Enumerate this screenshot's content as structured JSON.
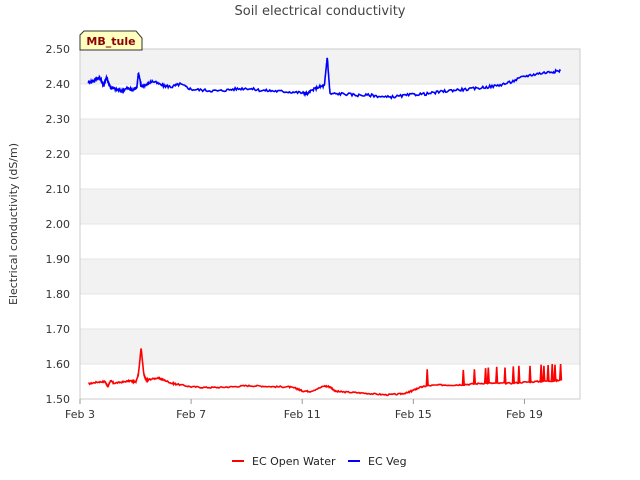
{
  "chart_data": {
    "type": "line",
    "title": "Soil electrical conductivity",
    "badge": "MB_tule",
    "xlabel": "",
    "ylabel": "Electrical conductivity (dS/m)",
    "xlim": [
      3.0,
      21.0
    ],
    "ylim": [
      1.5,
      2.5
    ],
    "yticks": [
      1.5,
      1.6,
      1.7,
      1.8,
      1.9,
      2.0,
      2.1,
      2.2,
      2.3,
      2.4,
      2.5
    ],
    "ytick_labels": [
      "1.50",
      "1.60",
      "1.70",
      "1.80",
      "1.90",
      "2.00",
      "2.10",
      "2.20",
      "2.30",
      "2.40",
      "2.50"
    ],
    "xticks": [
      3,
      7,
      11,
      15,
      19
    ],
    "xtick_labels": [
      "Feb 3",
      "Feb 7",
      "Feb 11",
      "Feb 15",
      "Feb 19"
    ],
    "grid": true,
    "legend_position": "bottom-center",
    "series": [
      {
        "name": "EC Open Water",
        "color": "#ff0000",
        "x": [
          3.3,
          3.6,
          3.9,
          4.0,
          4.1,
          4.2,
          4.5,
          4.8,
          5.0,
          5.1,
          5.2,
          5.3,
          5.35,
          5.4,
          5.5,
          5.8,
          6.0,
          6.3,
          6.5,
          7.0,
          7.5,
          8.0,
          8.5,
          9.0,
          9.5,
          10.0,
          10.5,
          10.8,
          11.0,
          11.3,
          11.8,
          12.0,
          12.2,
          12.5,
          13.0,
          13.5,
          14.0,
          14.5,
          14.8,
          15.0,
          15.2,
          15.5,
          16.0,
          16.5,
          17.0,
          17.5,
          18.0,
          18.5,
          19.0,
          19.5,
          20.0,
          20.3
        ],
        "values": [
          1.543,
          1.548,
          1.55,
          1.535,
          1.553,
          1.545,
          1.548,
          1.552,
          1.548,
          1.57,
          1.645,
          1.57,
          1.558,
          1.553,
          1.556,
          1.56,
          1.555,
          1.545,
          1.542,
          1.535,
          1.533,
          1.533,
          1.535,
          1.538,
          1.537,
          1.535,
          1.535,
          1.53,
          1.523,
          1.522,
          1.537,
          1.535,
          1.522,
          1.52,
          1.518,
          1.515,
          1.512,
          1.514,
          1.518,
          1.525,
          1.532,
          1.538,
          1.54,
          1.54,
          1.542,
          1.545,
          1.545,
          1.545,
          1.548,
          1.55,
          1.552,
          1.553
        ]
      },
      {
        "name": "EC Veg",
        "color": "#0000ff",
        "x": [
          3.3,
          3.5,
          3.7,
          3.85,
          3.95,
          4.1,
          4.3,
          4.5,
          4.7,
          4.9,
          5.05,
          5.1,
          5.2,
          5.4,
          5.6,
          6.0,
          6.3,
          6.6,
          7.0,
          7.5,
          8.0,
          8.5,
          9.0,
          9.5,
          10.0,
          10.5,
          11.0,
          11.2,
          11.3,
          11.6,
          11.8,
          11.9,
          12.0,
          12.5,
          13.0,
          13.5,
          14.0,
          14.5,
          15.0,
          15.5,
          16.0,
          16.5,
          17.0,
          17.5,
          18.0,
          18.5,
          19.0,
          19.5,
          20.0,
          20.3
        ],
        "values": [
          2.405,
          2.41,
          2.42,
          2.395,
          2.42,
          2.39,
          2.385,
          2.38,
          2.388,
          2.382,
          2.392,
          2.432,
          2.395,
          2.398,
          2.408,
          2.395,
          2.392,
          2.4,
          2.385,
          2.382,
          2.38,
          2.385,
          2.388,
          2.382,
          2.38,
          2.378,
          2.375,
          2.372,
          2.38,
          2.392,
          2.395,
          2.478,
          2.372,
          2.372,
          2.368,
          2.368,
          2.362,
          2.365,
          2.37,
          2.372,
          2.378,
          2.383,
          2.385,
          2.39,
          2.395,
          2.405,
          2.422,
          2.43,
          2.435,
          2.438
        ]
      }
    ],
    "spikes": {
      "EC Open Water": [
        15.5,
        16.8,
        17.2,
        17.6,
        17.7,
        18.0,
        18.3,
        18.6,
        18.8,
        19.2,
        19.6,
        19.7,
        19.85,
        20.0,
        20.1,
        20.3
      ],
      "spike_values": [
        1.585,
        1.583,
        1.585,
        1.588,
        1.59,
        1.592,
        1.59,
        1.593,
        1.595,
        1.595,
        1.598,
        1.595,
        1.597,
        1.6,
        1.598,
        1.6
      ]
    }
  },
  "legend": {
    "open_water": "EC Open Water",
    "veg": "EC Veg"
  }
}
